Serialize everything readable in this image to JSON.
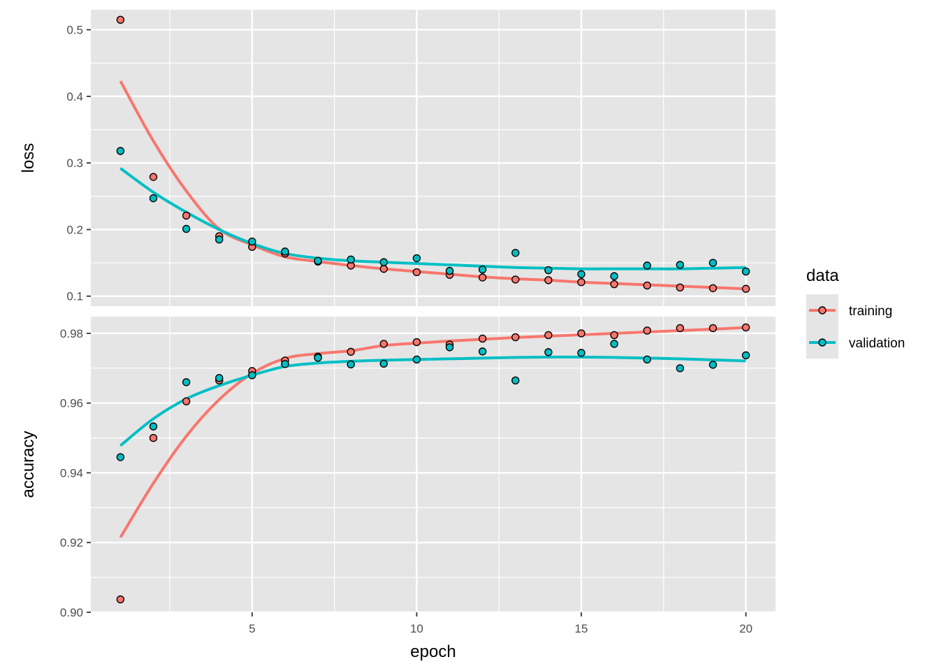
{
  "chart_data": {
    "type": "scatter",
    "facets": [
      "loss",
      "accuracy"
    ],
    "xlabel": "epoch",
    "x_ticks": [
      5,
      10,
      15,
      20
    ],
    "xlim": [
      0.1,
      20.9
    ],
    "legend": {
      "title": "data",
      "placement": "right",
      "entries": [
        "training",
        "validation"
      ]
    },
    "colors": {
      "training": "#F8766D",
      "validation": "#00BFC4",
      "point_outline": "#000000",
      "panel_bg": "#E5E5E5",
      "grid": "#FFFFFF"
    },
    "grid": true,
    "panels": [
      {
        "name": "loss",
        "ylabel": "loss",
        "ylim": [
          0.085,
          0.53
        ],
        "y_ticks": [
          0.1,
          0.2,
          0.3,
          0.4,
          0.5
        ],
        "y_tick_labels": [
          "0.1",
          "0.2",
          "0.3",
          "0.4",
          "0.5"
        ],
        "series": [
          {
            "name": "training",
            "x": [
              1,
              2,
              3,
              4,
              5,
              6,
              7,
              8,
              9,
              10,
              11,
              12,
              13,
              14,
              15,
              16,
              17,
              18,
              19,
              20
            ],
            "points": [
              0.515,
              0.279,
              0.221,
              0.19,
              0.174,
              0.164,
              0.152,
              0.146,
              0.141,
              0.136,
              0.132,
              0.128,
              0.125,
              0.124,
              0.121,
              0.118,
              0.116,
              0.113,
              0.112,
              0.111
            ],
            "trend": [
              0.423,
              0.333,
              0.258,
              0.201,
              0.177,
              0.159,
              0.152,
              0.146,
              0.141,
              0.137,
              0.133,
              0.129,
              0.126,
              0.124,
              0.121,
              0.119,
              0.117,
              0.115,
              0.113,
              0.111
            ]
          },
          {
            "name": "validation",
            "x": [
              1,
              2,
              3,
              4,
              5,
              6,
              7,
              8,
              9,
              10,
              11,
              12,
              13,
              14,
              15,
              16,
              17,
              18,
              19,
              20
            ],
            "points": [
              0.318,
              0.247,
              0.201,
              0.185,
              0.182,
              0.167,
              0.153,
              0.155,
              0.151,
              0.157,
              0.138,
              0.14,
              0.165,
              0.139,
              0.133,
              0.13,
              0.146,
              0.147,
              0.15,
              0.137
            ],
            "trend": [
              0.292,
              0.256,
              0.226,
              0.2,
              0.179,
              0.164,
              0.157,
              0.153,
              0.151,
              0.149,
              0.147,
              0.145,
              0.143,
              0.142,
              0.141,
              0.141,
              0.141,
              0.141,
              0.142,
              0.143
            ]
          }
        ]
      },
      {
        "name": "accuracy",
        "ylabel": "accuracy",
        "ylim": [
          0.9,
          0.9848
        ],
        "y_ticks": [
          0.9,
          0.92,
          0.94,
          0.96,
          0.98
        ],
        "y_tick_labels": [
          "0.90",
          "0.92",
          "0.94",
          "0.96",
          "0.98"
        ],
        "series": [
          {
            "name": "training",
            "x": [
              1,
              2,
              3,
              4,
              5,
              6,
              7,
              8,
              9,
              10,
              11,
              12,
              13,
              14,
              15,
              16,
              17,
              18,
              19,
              20
            ],
            "points": [
              0.9037,
              0.95,
              0.9605,
              0.9665,
              0.9692,
              0.9722,
              0.9733,
              0.9747,
              0.977,
              0.9775,
              0.9768,
              0.9785,
              0.9789,
              0.9795,
              0.98,
              0.9795,
              0.9808,
              0.9815,
              0.9815,
              0.9817
            ],
            "trend": [
              0.9215,
              0.937,
              0.9505,
              0.961,
              0.9685,
              0.9728,
              0.9742,
              0.975,
              0.9765,
              0.9772,
              0.9778,
              0.9783,
              0.9788,
              0.9792,
              0.9796,
              0.98,
              0.9804,
              0.9808,
              0.9812,
              0.9817
            ]
          },
          {
            "name": "validation",
            "x": [
              1,
              2,
              3,
              4,
              5,
              6,
              7,
              8,
              9,
              10,
              11,
              12,
              13,
              14,
              15,
              16,
              17,
              18,
              19,
              20
            ],
            "points": [
              0.9445,
              0.9533,
              0.966,
              0.9672,
              0.968,
              0.9712,
              0.973,
              0.9711,
              0.9713,
              0.9725,
              0.976,
              0.9748,
              0.9665,
              0.9746,
              0.9744,
              0.977,
              0.9725,
              0.97,
              0.971,
              0.9737
            ],
            "trend": [
              0.9478,
              0.9555,
              0.9612,
              0.965,
              0.968,
              0.9705,
              0.9715,
              0.972,
              0.9723,
              0.9725,
              0.9727,
              0.9729,
              0.9731,
              0.9732,
              0.9732,
              0.9731,
              0.9729,
              0.9727,
              0.9724,
              0.9721
            ]
          }
        ]
      }
    ]
  }
}
